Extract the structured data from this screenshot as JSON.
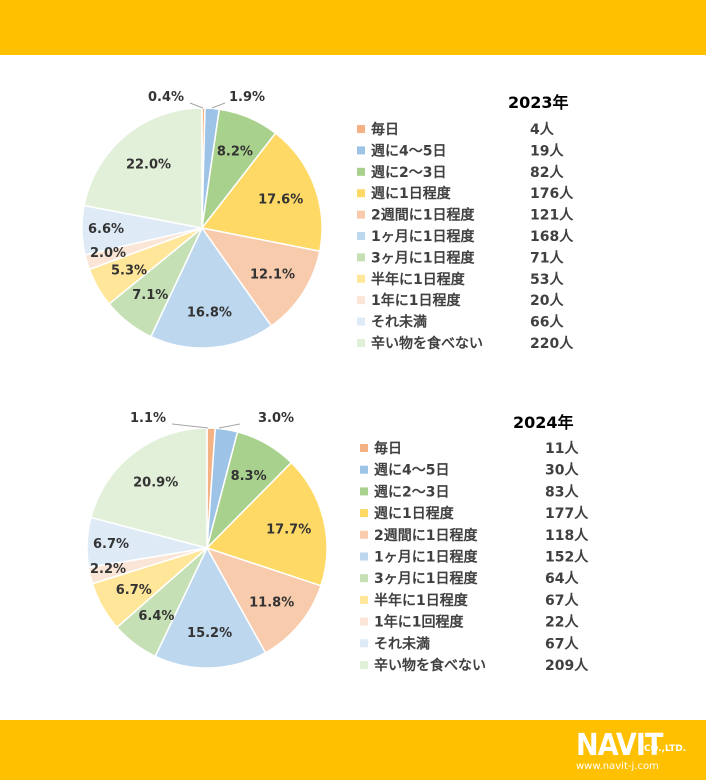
{
  "chart_data": [
    {
      "type": "pie",
      "title": "2023年",
      "categories": [
        "毎日",
        "週に4～5日",
        "週に2～3日",
        "週に1日程度",
        "2週間に1日程度",
        "1ヶ月に1日程度",
        "3ヶ月に1日程度",
        "半年に1日程度",
        "1年に1日程度",
        "それ未満",
        "辛い物を食べない"
      ],
      "values": [
        4,
        19,
        82,
        176,
        121,
        168,
        71,
        53,
        20,
        66,
        220
      ],
      "counts": [
        "4人",
        "19人",
        "82人",
        "176人",
        "121人",
        "168人",
        "71人",
        "53人",
        "20人",
        "66人",
        "220人"
      ],
      "percent_labels": [
        "0.4%",
        "1.9%",
        "8.2%",
        "17.6%",
        "12.1%",
        "16.8%",
        "7.1%",
        "5.3%",
        "2.0%",
        "6.6%",
        "22.0%"
      ],
      "colors": [
        "#F4B183",
        "#9DC3E6",
        "#A9D18E",
        "#FFD966",
        "#F8CBAD",
        "#BDD7EE",
        "#C5E0B4",
        "#FFE699",
        "#FBE5D6",
        "#DEEBF7",
        "#E2F0D9"
      ],
      "legend_position": "right"
    },
    {
      "type": "pie",
      "title": "2024年",
      "categories": [
        "毎日",
        "週に4～5日",
        "週に2～3日",
        "週に1日程度",
        "2週間に1日程度",
        "1ヶ月に1日程度",
        "3ヶ月に1日程度",
        "半年に1日程度",
        "1年に1回程度",
        "それ未満",
        "辛い物を食べない"
      ],
      "values": [
        11,
        30,
        83,
        177,
        118,
        152,
        64,
        67,
        22,
        67,
        209
      ],
      "counts": [
        "11人",
        "30人",
        "83人",
        "177人",
        "118人",
        "152人",
        "64人",
        "67人",
        "22人",
        "67人",
        "209人"
      ],
      "percent_labels": [
        "1.1%",
        "3.0%",
        "8.3%",
        "17.7%",
        "11.8%",
        "15.2%",
        "6.4%",
        "6.7%",
        "2.2%",
        "6.7%",
        "20.9%"
      ],
      "colors": [
        "#F4B183",
        "#9DC3E6",
        "#A9D18E",
        "#FFD966",
        "#F8CBAD",
        "#BDD7EE",
        "#C5E0B4",
        "#FFE699",
        "#FBE5D6",
        "#DEEBF7",
        "#E2F0D9"
      ],
      "legend_position": "right"
    }
  ],
  "logo": {
    "main": "NAVIT",
    "suffix": "CO.,LTD.",
    "url": "www.navit-j.com"
  }
}
